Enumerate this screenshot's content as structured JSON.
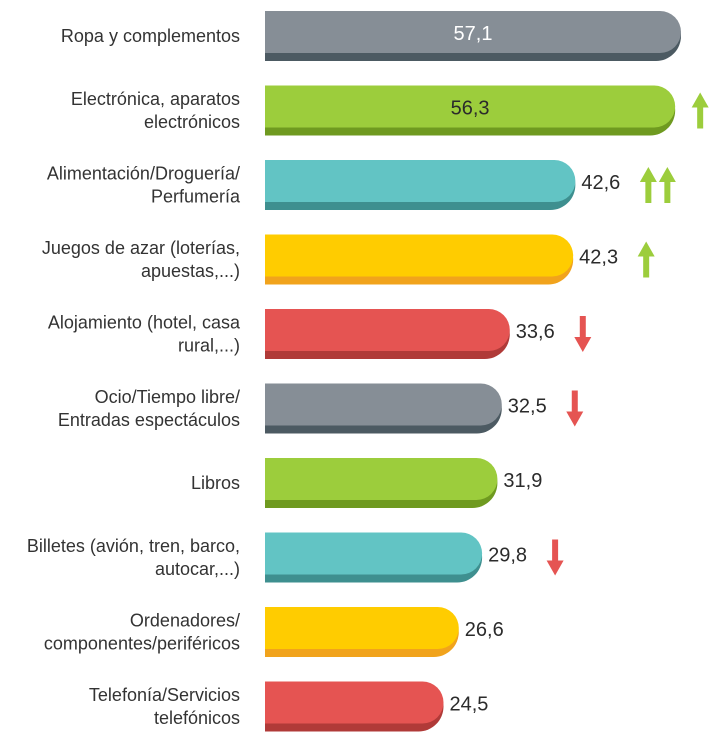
{
  "chart_data": {
    "type": "bar",
    "orientation": "horizontal",
    "categories": [
      [
        "Ropa y complementos"
      ],
      [
        "Electrónica, aparatos",
        "electrónicos"
      ],
      [
        "Alimentación/Droguería/",
        "Perfumería"
      ],
      [
        "Juegos de azar (loterías,",
        "apuestas,...)"
      ],
      [
        "Alojamiento (hotel, casa",
        "rural,...)"
      ],
      [
        "Ocio/Tiempo libre/",
        "Entradas espectáculos"
      ],
      [
        "Libros"
      ],
      [
        "Billetes (avión, tren, barco,",
        "autocar,...)"
      ],
      [
        "Ordenadores/",
        "componentes/periféricos"
      ],
      [
        "Telefonía/Servicios",
        "telefónicos"
      ]
    ],
    "values": [
      57.1,
      56.3,
      42.6,
      42.3,
      33.6,
      32.5,
      31.9,
      29.8,
      26.6,
      24.5
    ],
    "value_labels": [
      "57,1",
      "56,3",
      "42,6",
      "42,3",
      "33,6",
      "32,5",
      "31,9",
      "29,8",
      "26,6",
      "24,5"
    ],
    "trend": [
      "",
      "up",
      "up-double",
      "up",
      "down",
      "down",
      "",
      "down",
      "",
      ""
    ],
    "bar_colors": [
      "#868e96",
      "#9ccd3c",
      "#62c4c4",
      "#ffcc00",
      "#e55452",
      "#868e96",
      "#9ccd3c",
      "#62c4c4",
      "#ffcc00",
      "#e55452"
    ],
    "bar_shadow_colors": [
      "#4c5a62",
      "#6f9a20",
      "#3e8f8f",
      "#f1a31c",
      "#b03a38",
      "#4c5a62",
      "#6f9a20",
      "#3e8f8f",
      "#f1a31c",
      "#b03a38"
    ],
    "arrow_colors": {
      "up": "#9ccd3c",
      "down": "#e55452"
    },
    "label_inside_threshold": 50,
    "xlim": [
      0,
      57.1
    ]
  }
}
